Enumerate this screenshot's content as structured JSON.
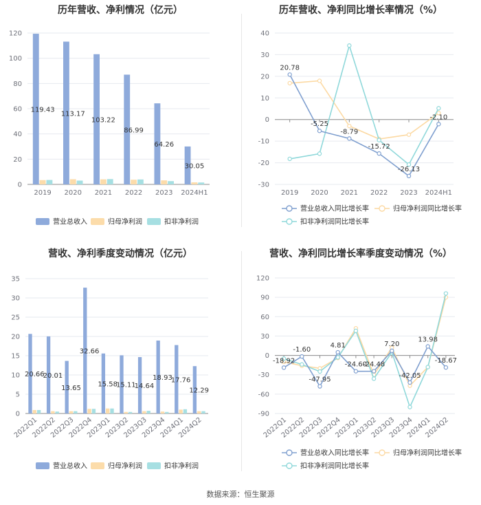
{
  "chart_data": [
    {
      "type": "bar",
      "title": "历年营收、净利情况（亿元）",
      "categories": [
        "2019",
        "2020",
        "2021",
        "2022",
        "2023",
        "2024H1"
      ],
      "ylim": [
        0,
        120
      ],
      "yticks": [
        0,
        20,
        40,
        60,
        80,
        100,
        120
      ],
      "series": [
        {
          "name": "营业总收入",
          "color": "#8eaadb",
          "values": [
            119.43,
            113.17,
            103.22,
            86.99,
            64.26,
            30.05
          ],
          "labels": [
            "119.43",
            "113.17",
            "103.22",
            "86.99",
            "64.26",
            "30.05"
          ]
        },
        {
          "name": "归母净利润",
          "color": "#fcdcaa",
          "values": [
            3.4,
            4.1,
            4.0,
            3.7,
            3.2,
            1.6
          ]
        },
        {
          "name": "扣非净利润",
          "color": "#a6dfe2",
          "values": [
            3.5,
            3.0,
            4.2,
            3.9,
            2.6,
            1.5
          ]
        }
      ]
    },
    {
      "type": "line",
      "title": "历年营收、净利同比增长率情况（%）",
      "categories": [
        "2019",
        "2020",
        "2021",
        "2022",
        "2023",
        "2024H1"
      ],
      "ylim": [
        -30,
        40
      ],
      "yticks": [
        -30,
        -20,
        -10,
        0,
        10,
        20,
        30,
        40
      ],
      "series": [
        {
          "name": "营业总收入同比增长率",
          "color": "#7f9fcf",
          "values": [
            20.78,
            -5.25,
            -8.79,
            -15.72,
            -26.13,
            -2.1
          ],
          "labels": [
            "20.78",
            "-5.25",
            "-8.79",
            "-15.72",
            "-26.13",
            "-2.10"
          ]
        },
        {
          "name": "归母净利润同比增长率",
          "color": "#fcd9a2",
          "values": [
            16.8,
            17.9,
            -3.0,
            -9.0,
            -7.0,
            3.0
          ]
        },
        {
          "name": "扣非净利润同比增长率",
          "color": "#8fd8da",
          "values": [
            -18.2,
            -15.8,
            34.2,
            -9.5,
            -20.8,
            5.2
          ]
        }
      ]
    },
    {
      "type": "bar",
      "title": "营收、净利季度变动情况（亿元）",
      "categories": [
        "2022Q1",
        "2022Q2",
        "2022Q3",
        "2022Q4",
        "2023Q1",
        "2023Q2",
        "2023Q3",
        "2023Q4",
        "2024Q1",
        "2024Q2"
      ],
      "ylim": [
        0,
        35
      ],
      "yticks": [
        0,
        5,
        10,
        15,
        20,
        25,
        30,
        35
      ],
      "series": [
        {
          "name": "营业总收入",
          "color": "#8eaadb",
          "values": [
            20.66,
            20.01,
            13.65,
            32.66,
            15.58,
            15.11,
            14.64,
            18.93,
            17.76,
            12.29
          ],
          "labels": [
            "20.66",
            "20.01",
            "13.65",
            "32.66",
            "15.58",
            "15.11",
            "14.64",
            "18.93",
            "17.76",
            "12.29"
          ]
        },
        {
          "name": "归母净利润",
          "color": "#fcdcaa",
          "values": [
            0.9,
            0.6,
            0.6,
            1.2,
            1.3,
            0.4,
            0.6,
            0.5,
            1.0,
            0.6
          ]
        },
        {
          "name": "扣非净利润",
          "color": "#a6dfe2",
          "values": [
            0.9,
            0.5,
            0.6,
            1.2,
            1.3,
            0.4,
            0.7,
            0.4,
            1.1,
            0.6
          ]
        }
      ]
    },
    {
      "type": "line",
      "title": "营收、净利同比增长率季度变动情况（%）",
      "categories": [
        "2022Q1",
        "2022Q2",
        "2022Q3",
        "2022Q4",
        "2023Q1",
        "2023Q2",
        "2023Q3",
        "2023Q4",
        "2024Q1",
        "2024Q2"
      ],
      "ylim": [
        -90,
        120
      ],
      "yticks": [
        -90,
        -60,
        -30,
        0,
        30,
        60,
        90,
        120
      ],
      "series": [
        {
          "name": "营业总收入同比增长率",
          "color": "#7f9fcf",
          "values": [
            -18.92,
            -1.6,
            -47.95,
            4.81,
            -24.6,
            -24.48,
            7.2,
            -42.05,
            13.98,
            -18.67
          ],
          "labels": [
            "-18.92",
            "-1.60",
            "-47.95",
            "4.81",
            "-24.60",
            "-24.48",
            "7.20",
            "-42.05",
            "13.98",
            "-18.67"
          ]
        },
        {
          "name": "归母净利润同比增长率",
          "color": "#fcd9a2",
          "values": [
            -10.0,
            -16.0,
            -20.0,
            -4.0,
            42.0,
            -30.0,
            12.0,
            -47.0,
            -18.0,
            90.0
          ]
        },
        {
          "name": "扣非净利润同比增长率",
          "color": "#8fd8da",
          "values": [
            -5.0,
            -14.0,
            -25.0,
            -3.0,
            38.0,
            -36.0,
            5.0,
            -80.0,
            -18.0,
            96.0
          ]
        }
      ]
    }
  ],
  "footer": {
    "source": "数据来源：恒生聚源"
  }
}
